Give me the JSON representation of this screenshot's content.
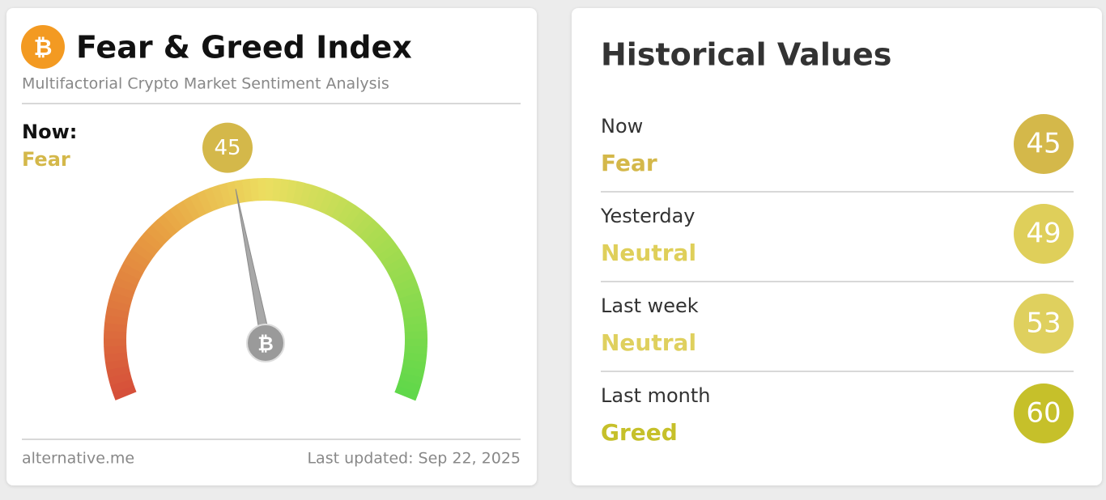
{
  "header": {
    "title": "Fear & Greed Index",
    "subtitle": "Multifactorial Crypto Market Sentiment Analysis"
  },
  "gauge": {
    "label": "Now:",
    "classification": "Fear",
    "value": 45,
    "range": [
      0,
      100
    ],
    "color": "#d4b84a"
  },
  "footer": {
    "source": "alternative.me",
    "updated": "Last updated: Sep 22, 2025"
  },
  "history": {
    "title": "Historical Values",
    "rows": [
      {
        "label": "Now",
        "classification": "Fear",
        "value": 45,
        "color": "#d4b84a"
      },
      {
        "label": "Yesterday",
        "classification": "Neutral",
        "value": 49,
        "color": "#dfcf5a"
      },
      {
        "label": "Last week",
        "classification": "Neutral",
        "value": 53,
        "color": "#dfd05e"
      },
      {
        "label": "Last month",
        "classification": "Greed",
        "value": 60,
        "color": "#c6c02a"
      }
    ]
  }
}
